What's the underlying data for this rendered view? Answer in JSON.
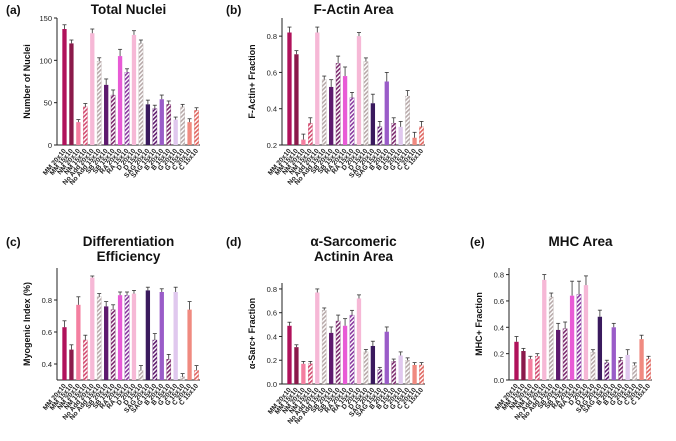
{
  "colors": {
    "magenta_dark": "#b0125b",
    "maroon": "#8b1a4b",
    "pink_light": "#f47fa0",
    "rose": "#d24b70",
    "soft_pink": "#f6b8d6",
    "grey_hatch": "#b8aaaa",
    "purple_dark": "#5e1a6e",
    "plum": "#7c2a6e",
    "hot_pink": "#e85bd6",
    "violet": "#8a3aa0",
    "lilac": "#d6a6f0",
    "indigo": "#3a1a5e",
    "orchid": "#9a5cc8",
    "mauve": "#b48ad0",
    "lavender": "#e0c8ee",
    "salmon": "#f08a80",
    "coral": "#e06660"
  },
  "chart_data": [
    {
      "id": "a",
      "panel_label": "(a)",
      "type": "bar",
      "title_lines": [
        "Total Nuclei"
      ],
      "ylabel": "Number of Nuclei",
      "ylim": [
        0,
        150
      ],
      "yticks": [
        0,
        50,
        100,
        150
      ],
      "yticklabels": [
        "0",
        "50",
        "100",
        "150"
      ],
      "categories": [
        "MM 20x10",
        "MM 15x10",
        "NM 20x10",
        "NM 15x10",
        "No Add 20x10",
        "No Add 15x10",
        "SB 20x10",
        "SB 15x10",
        "RA 20x10",
        "RA 15x10",
        "D 20x10",
        "D 15x10",
        "SAG 20x10",
        "SAG 15x10",
        "B 20x10",
        "B 15x10",
        "G 20x10",
        "G 15x10",
        "C 20x10",
        "C 15x10"
      ],
      "values": [
        137,
        120,
        27,
        45,
        132,
        99,
        71,
        59,
        105,
        86,
        130,
        120,
        48,
        43,
        54,
        48,
        30,
        45,
        27,
        41
      ],
      "errors": [
        5,
        4,
        3,
        4,
        5,
        4,
        7,
        6,
        8,
        4,
        5,
        4,
        5,
        4,
        5,
        4,
        3,
        3,
        4,
        3
      ],
      "colors": [
        "#b0125b",
        "#8b1a4b",
        "#f47fa0",
        "#d24b70",
        "#f6b8d6",
        "#b8aaaa",
        "#5e1a6e",
        "#7c2a6e",
        "#e85bd6",
        "#8a3aa0",
        "#f6b8d6",
        "#b8aaaa",
        "#3a1a5e",
        "#5e1a6e",
        "#9a5cc8",
        "#7c2a6e",
        "#e0c8ee",
        "#b8aaaa",
        "#f08a80",
        "#e06660"
      ],
      "hatched": [
        false,
        false,
        false,
        true,
        false,
        true,
        false,
        true,
        false,
        true,
        false,
        true,
        false,
        true,
        false,
        true,
        false,
        true,
        false,
        true
      ]
    },
    {
      "id": "b",
      "panel_label": "(b)",
      "type": "bar",
      "title_lines": [
        "F-Actin Area"
      ],
      "ylabel": "F-Actin+ Fraction",
      "ylim": [
        0.2,
        0.9
      ],
      "yticks": [
        0.2,
        0.4,
        0.6,
        0.8
      ],
      "yticklabels": [
        "0.2",
        "0.4",
        "0.6",
        "0.8"
      ],
      "categories": [
        "MM 20x10",
        "MM 15x10",
        "NM 20x10",
        "NM 15x10",
        "No Add 20x10",
        "No Add 15x10",
        "SB 20x10",
        "SB 15x10",
        "RA 20x10",
        "RA 15x10",
        "D 20x10",
        "D 15x10",
        "SAG 20x10",
        "SAG 15x10",
        "B 20x10",
        "B 15x10",
        "G 20x10",
        "G 15x10",
        "C 20x10",
        "C 15x10"
      ],
      "values": [
        0.82,
        0.7,
        0.23,
        0.32,
        0.82,
        0.56,
        0.52,
        0.65,
        0.58,
        0.46,
        0.8,
        0.66,
        0.43,
        0.3,
        0.55,
        0.32,
        0.3,
        0.47,
        0.24,
        0.3
      ],
      "errors": [
        0.03,
        0.02,
        0.03,
        0.03,
        0.03,
        0.02,
        0.04,
        0.04,
        0.05,
        0.03,
        0.02,
        0.02,
        0.05,
        0.03,
        0.05,
        0.03,
        0.03,
        0.03,
        0.03,
        0.03
      ],
      "colors": [
        "#b0125b",
        "#8b1a4b",
        "#f47fa0",
        "#d24b70",
        "#f6b8d6",
        "#b8aaaa",
        "#5e1a6e",
        "#7c2a6e",
        "#e85bd6",
        "#8a3aa0",
        "#f6b8d6",
        "#b8aaaa",
        "#3a1a5e",
        "#5e1a6e",
        "#9a5cc8",
        "#7c2a6e",
        "#e0c8ee",
        "#b8aaaa",
        "#f08a80",
        "#e06660"
      ],
      "hatched": [
        false,
        false,
        false,
        true,
        false,
        true,
        false,
        true,
        false,
        true,
        false,
        true,
        false,
        true,
        false,
        true,
        false,
        true,
        false,
        true
      ]
    },
    {
      "id": "c",
      "panel_label": "(c)",
      "type": "bar",
      "title_lines": [
        "Differentiation",
        "Efficiency"
      ],
      "ylabel": "Myogenic Index (%)",
      "ylim": [
        0.3,
        1.0
      ],
      "yticks": [
        0.4,
        0.6,
        0.8
      ],
      "yticklabels": [
        "0.4",
        "0.6",
        "0.8"
      ],
      "categories": [
        "MM 20x10",
        "MM 15x10",
        "NM 20x10",
        "NM 15x10",
        "No Add 20x10",
        "No Add 15x10",
        "SB 20x10",
        "SB 15x10",
        "RA 20x10",
        "RA 15x10",
        "D 20x10",
        "D 15x10",
        "SAG 20x10",
        "SAG 15x10",
        "B 20x10",
        "B 15x10",
        "G 20x10",
        "G 15x10",
        "C 20x10",
        "C 15x10"
      ],
      "values": [
        0.63,
        0.49,
        0.77,
        0.55,
        0.94,
        0.82,
        0.76,
        0.74,
        0.83,
        0.83,
        0.84,
        0.36,
        0.86,
        0.55,
        0.85,
        0.43,
        0.85,
        0.32,
        0.74,
        0.36
      ],
      "errors": [
        0.04,
        0.03,
        0.05,
        0.03,
        0.01,
        0.02,
        0.03,
        0.03,
        0.02,
        0.02,
        0.02,
        0.03,
        0.02,
        0.04,
        0.02,
        0.03,
        0.03,
        0.02,
        0.05,
        0.03
      ],
      "colors": [
        "#b0125b",
        "#8b1a4b",
        "#f47fa0",
        "#d24b70",
        "#f6b8d6",
        "#b8aaaa",
        "#5e1a6e",
        "#7c2a6e",
        "#e85bd6",
        "#8a3aa0",
        "#f6b8d6",
        "#b8aaaa",
        "#3a1a5e",
        "#5e1a6e",
        "#9a5cc8",
        "#7c2a6e",
        "#e0c8ee",
        "#b8aaaa",
        "#f08a80",
        "#e06660"
      ],
      "hatched": [
        false,
        false,
        false,
        true,
        false,
        true,
        false,
        true,
        false,
        true,
        false,
        true,
        false,
        true,
        false,
        true,
        false,
        true,
        false,
        true
      ]
    },
    {
      "id": "d",
      "panel_label": "(d)",
      "type": "bar",
      "title_lines": [
        "α-Sarcomeric",
        "Actinin Area"
      ],
      "ylabel": "α-Sarc+ Fraction",
      "ylim": [
        0,
        0.85
      ],
      "yticks": [
        0.0,
        0.2,
        0.4,
        0.6,
        0.8
      ],
      "yticklabels": [
        "0.0",
        "0.2",
        "0.4",
        "0.6",
        "0.8"
      ],
      "categories": [
        "MM 20x10",
        "MM 15x10",
        "NM 20x10",
        "NM 15x10",
        "No Add 20x10",
        "No Add 15x10",
        "SB 20x10",
        "SB 15x10",
        "RA 20x10",
        "RA 15x10",
        "D 20x10",
        "D 15x10",
        "SAG 20x10",
        "SAG 15x10",
        "B 20x10",
        "B 15x10",
        "G 20x10",
        "G 15x10",
        "C 20x10",
        "C 15x10"
      ],
      "values": [
        0.49,
        0.31,
        0.17,
        0.17,
        0.77,
        0.62,
        0.43,
        0.53,
        0.49,
        0.58,
        0.72,
        0.27,
        0.32,
        0.12,
        0.44,
        0.19,
        0.24,
        0.2,
        0.16,
        0.16
      ],
      "errors": [
        0.03,
        0.02,
        0.02,
        0.02,
        0.03,
        0.02,
        0.05,
        0.05,
        0.06,
        0.04,
        0.03,
        0.02,
        0.04,
        0.02,
        0.04,
        0.02,
        0.03,
        0.02,
        0.02,
        0.02
      ],
      "colors": [
        "#b0125b",
        "#8b1a4b",
        "#f47fa0",
        "#d24b70",
        "#f6b8d6",
        "#b8aaaa",
        "#5e1a6e",
        "#7c2a6e",
        "#e85bd6",
        "#8a3aa0",
        "#f6b8d6",
        "#b8aaaa",
        "#3a1a5e",
        "#5e1a6e",
        "#9a5cc8",
        "#7c2a6e",
        "#e0c8ee",
        "#b8aaaa",
        "#f08a80",
        "#e06660"
      ],
      "hatched": [
        false,
        false,
        false,
        true,
        false,
        true,
        false,
        true,
        false,
        true,
        false,
        true,
        false,
        true,
        false,
        true,
        false,
        true,
        false,
        true
      ]
    },
    {
      "id": "e",
      "panel_label": "(e)",
      "type": "bar",
      "title_lines": [
        "MHC Area"
      ],
      "ylabel": "MHC+ Fraction",
      "ylim": [
        0,
        0.85
      ],
      "yticks": [
        0.0,
        0.2,
        0.4,
        0.6,
        0.8
      ],
      "yticklabels": [
        "0.0",
        "0.2",
        "0.4",
        "0.6",
        "0.8"
      ],
      "categories": [
        "MM 20x10",
        "MM 15x10",
        "NM 20x10",
        "NM 15x10",
        "No Add 20x10",
        "No Add 15x10",
        "SB 20x10",
        "SB 15x10",
        "RA 20x10",
        "RA 15x10",
        "D 20x10",
        "D 15x10",
        "SAG 20x10",
        "SAG 15x10",
        "B 20x10",
        "B 15x10",
        "G 20x10",
        "G 15x10",
        "C 20x10",
        "C 15x10"
      ],
      "values": [
        0.29,
        0.22,
        0.16,
        0.18,
        0.76,
        0.63,
        0.38,
        0.39,
        0.64,
        0.65,
        0.72,
        0.21,
        0.48,
        0.13,
        0.4,
        0.15,
        0.19,
        0.11,
        0.31,
        0.16
      ],
      "errors": [
        0.04,
        0.02,
        0.02,
        0.02,
        0.04,
        0.03,
        0.05,
        0.05,
        0.11,
        0.1,
        0.07,
        0.02,
        0.05,
        0.02,
        0.03,
        0.02,
        0.04,
        0.02,
        0.03,
        0.02
      ],
      "colors": [
        "#b0125b",
        "#8b1a4b",
        "#f47fa0",
        "#d24b70",
        "#f6b8d6",
        "#b8aaaa",
        "#5e1a6e",
        "#7c2a6e",
        "#e85bd6",
        "#8a3aa0",
        "#f6b8d6",
        "#b8aaaa",
        "#3a1a5e",
        "#5e1a6e",
        "#9a5cc8",
        "#7c2a6e",
        "#e0c8ee",
        "#b8aaaa",
        "#f08a80",
        "#e06660"
      ],
      "hatched": [
        false,
        false,
        false,
        true,
        false,
        true,
        false,
        true,
        false,
        true,
        false,
        true,
        false,
        true,
        false,
        true,
        false,
        true,
        false,
        true
      ]
    }
  ]
}
